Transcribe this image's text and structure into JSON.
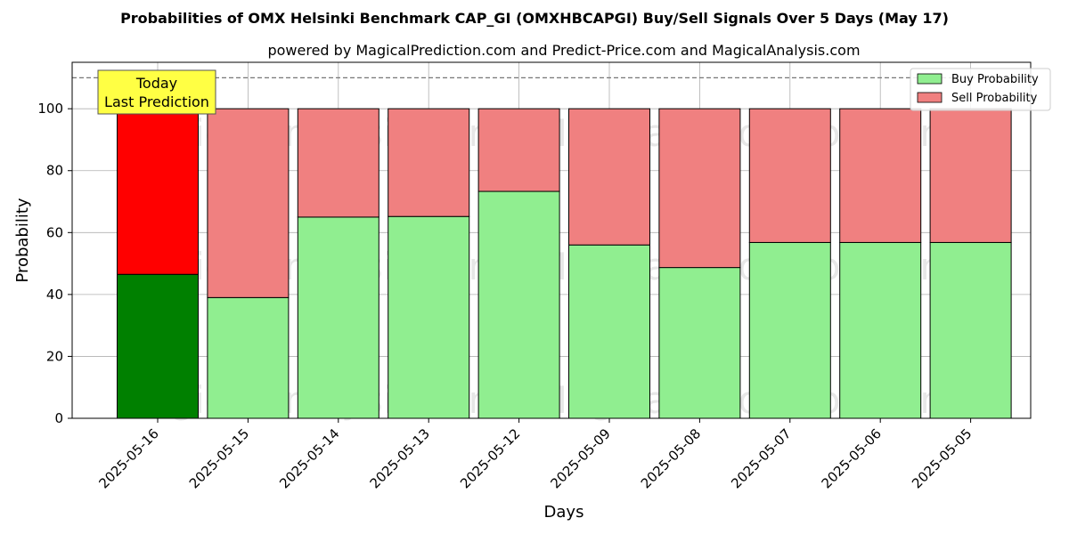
{
  "chart_data": {
    "type": "bar",
    "stacked": true,
    "title": "Probabilities of OMX Helsinki Benchmark CAP_GI (OMXHBCAPGI) Buy/Sell Signals Over 5 Days (May 17)",
    "subtitle": "powered by MagicalPrediction.com and Predict-Price.com and MagicalAnalysis.com",
    "xlabel": "Days",
    "ylabel": "Probability",
    "ylim": [
      0,
      115
    ],
    "yticks": [
      0,
      20,
      40,
      60,
      80,
      100
    ],
    "grid": true,
    "legend_position": "top-right",
    "reference_line": 110,
    "categories": [
      "2025-05-16",
      "2025-05-15",
      "2025-05-14",
      "2025-05-13",
      "2025-05-12",
      "2025-05-09",
      "2025-05-08",
      "2025-05-07",
      "2025-05-06",
      "2025-05-05"
    ],
    "series": [
      {
        "name": "Buy Probability",
        "values": [
          46.5,
          39.0,
          65.0,
          65.2,
          73.3,
          56.0,
          48.7,
          56.8,
          56.8,
          56.8
        ]
      },
      {
        "name": "Sell Probability",
        "values": [
          53.5,
          61.0,
          35.0,
          34.8,
          26.7,
          44.0,
          51.3,
          43.2,
          43.2,
          43.2
        ]
      }
    ],
    "colors": {
      "buy": "#90ee90",
      "sell": "#f08080",
      "buy_highlight": "#008000",
      "sell_highlight": "#ff0000",
      "annotation_bg": "#ffff44"
    },
    "annotation": {
      "line1": "Today",
      "line2": "Last Prediction"
    },
    "watermarks": [
      "MagicalAnalysis.com",
      "MagicalPrediction.com"
    ]
  }
}
